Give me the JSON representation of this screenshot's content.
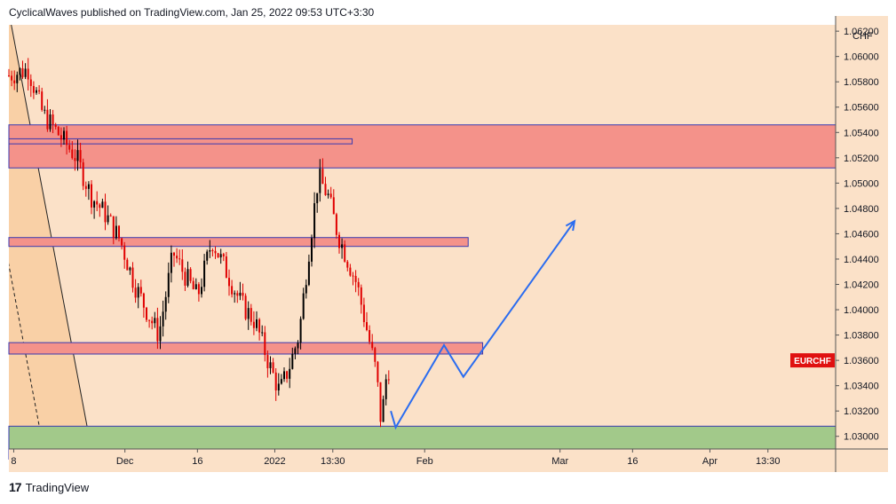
{
  "header": {
    "published_text": "CyclicalWaves published on TradingView.com, Jan 25, 2022 09:53 UTC+3:30"
  },
  "footer": {
    "logo_glyph": "17",
    "brand": "TradingView"
  },
  "colors": {
    "background": "#fbe1c8",
    "bull_candle": "#000000",
    "bear_candle": "#e00000",
    "supply_zone": "#f4928a",
    "zone_border": "#3a3ab0",
    "demand_zone": "#a2c98a",
    "channel_fill": "#f8cda0",
    "projection": "#2a6cf0",
    "price_label": "#e01010"
  },
  "chart_data": {
    "type": "candlestick",
    "symbol_label": "EURCHF",
    "currency_label": "CHF",
    "y_axis": {
      "ylim": [
        1.029,
        1.0625
      ],
      "tick_values": [
        1.062,
        1.06,
        1.058,
        1.056,
        1.054,
        1.052,
        1.05,
        1.048,
        1.046,
        1.044,
        1.042,
        1.04,
        1.038,
        1.036,
        1.034,
        1.032,
        1.03
      ],
      "tick_labels": [
        "1.06200",
        "1.06000",
        "1.05800",
        "1.05600",
        "1.05400",
        "1.05200",
        "1.05000",
        "1.04800",
        "1.04600",
        "1.04400",
        "1.04200",
        "1.04000",
        "1.03800",
        "1.03600",
        "1.03400",
        "1.03200",
        "1.03000"
      ]
    },
    "x_axis": {
      "dates": [
        "2021-11-07",
        "2021-11-08",
        "2021-12-01",
        "2021-12-16",
        "2022-01-01",
        "2022-01-13",
        "2022-01-25",
        "2022-02-01",
        "2022-03-01",
        "2022-03-16",
        "2022-04-01",
        "2022-04-13",
        "2022-04-27"
      ],
      "tick_labels": [
        {
          "date": "2021-11-08",
          "label": "8"
        },
        {
          "date": "2021-12-01",
          "label": "Dec"
        },
        {
          "date": "2021-12-16",
          "label": "16"
        },
        {
          "date": "2022-01-01",
          "label": "2022"
        },
        {
          "date": "2022-01-13",
          "label": "13:30"
        },
        {
          "date": "2022-02-01",
          "label": "Feb"
        },
        {
          "date": "2022-03-01",
          "label": "Mar"
        },
        {
          "date": "2022-03-16",
          "label": "16"
        },
        {
          "date": "2022-04-01",
          "label": "Apr"
        },
        {
          "date": "2022-04-13",
          "label": "13:30"
        }
      ]
    },
    "price_path": [
      {
        "date": "2021-11-07",
        "price": 1.0585
      },
      {
        "date": "2021-11-11",
        "price": 1.059
      },
      {
        "date": "2021-11-14",
        "price": 1.0555
      },
      {
        "date": "2021-11-17",
        "price": 1.054
      },
      {
        "date": "2021-11-21",
        "price": 1.052
      },
      {
        "date": "2021-11-24",
        "price": 1.049
      },
      {
        "date": "2021-11-27",
        "price": 1.0475
      },
      {
        "date": "2021-11-30",
        "price": 1.0455
      },
      {
        "date": "2021-12-03",
        "price": 1.042
      },
      {
        "date": "2021-12-06",
        "price": 1.0395
      },
      {
        "date": "2021-12-08",
        "price": 1.038
      },
      {
        "date": "2021-12-11",
        "price": 1.0445
      },
      {
        "date": "2021-12-13",
        "price": 1.043
      },
      {
        "date": "2021-12-16",
        "price": 1.041
      },
      {
        "date": "2021-12-19",
        "price": 1.0455
      },
      {
        "date": "2021-12-22",
        "price": 1.043
      },
      {
        "date": "2021-12-25",
        "price": 1.0405
      },
      {
        "date": "2021-12-28",
        "price": 1.039
      },
      {
        "date": "2021-12-31",
        "price": 1.0355
      },
      {
        "date": "2022-01-02",
        "price": 1.0335
      },
      {
        "date": "2022-01-04",
        "price": 1.0355
      },
      {
        "date": "2022-01-06",
        "price": 1.038
      },
      {
        "date": "2022-01-08",
        "price": 1.0445
      },
      {
        "date": "2022-01-10",
        "price": 1.0505
      },
      {
        "date": "2022-01-12",
        "price": 1.049
      },
      {
        "date": "2022-01-14",
        "price": 1.046
      },
      {
        "date": "2022-01-16",
        "price": 1.044
      },
      {
        "date": "2022-01-18",
        "price": 1.042
      },
      {
        "date": "2022-01-20",
        "price": 1.0385
      },
      {
        "date": "2022-01-22",
        "price": 1.035
      },
      {
        "date": "2022-01-23",
        "price": 1.031
      },
      {
        "date": "2022-01-24",
        "price": 1.0345
      },
      {
        "date": "2022-01-25",
        "price": 1.036
      }
    ],
    "supply_zones": [
      {
        "price_top": 1.0546,
        "price_bottom": 1.0512,
        "date_start": "2021-11-07",
        "date_end": "2022-04-27"
      },
      {
        "price_top": 1.0535,
        "price_bottom": 1.0531,
        "date_start": "2021-11-07",
        "date_end": "2022-01-17"
      },
      {
        "price_top": 1.0457,
        "price_bottom": 1.045,
        "date_start": "2021-11-07",
        "date_end": "2022-02-10"
      },
      {
        "price_top": 1.0374,
        "price_bottom": 1.0365,
        "date_start": "2021-11-07",
        "date_end": "2022-02-13"
      }
    ],
    "demand_zone": {
      "price_top": 1.0308,
      "price_bottom": 1.0282,
      "date_start": "2021-11-07",
      "date_end": "2022-04-27"
    },
    "projection_path": [
      {
        "date": "2022-01-25",
        "price": 1.032
      },
      {
        "date": "2022-01-26",
        "price": 1.0307
      },
      {
        "date": "2022-02-05",
        "price": 1.0372
      },
      {
        "date": "2022-02-09",
        "price": 1.0347
      },
      {
        "date": "2022-03-04",
        "price": 1.047
      }
    ],
    "current_price": 1.036,
    "grid": false
  }
}
